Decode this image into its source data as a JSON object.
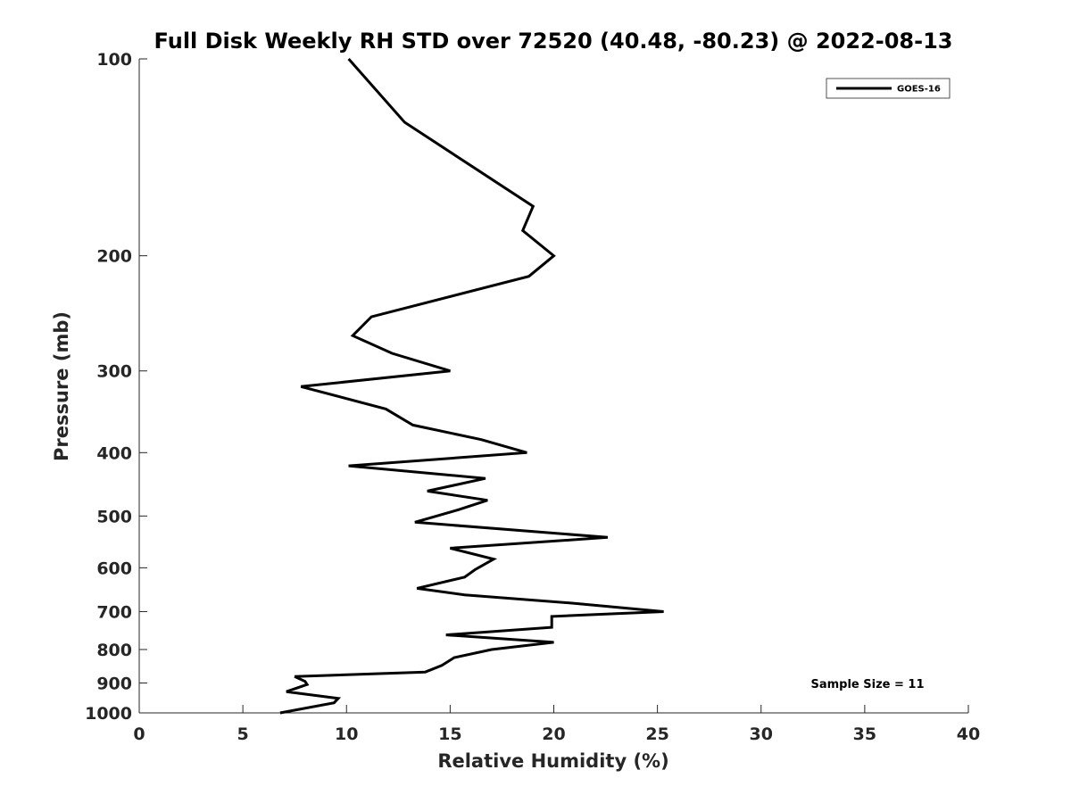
{
  "chart_data": {
    "type": "line",
    "title": "Full Disk Weekly RH STD over 72520 (40.48, -80.23) @ 2022-08-13",
    "xlabel": "Relative Humidity (%)",
    "ylabel": "Pressure (mb)",
    "xlim": [
      0,
      40
    ],
    "ylim": [
      100,
      1000
    ],
    "y_scale": "log",
    "y_reversed": true,
    "x_ticks": [
      "0",
      "5",
      "10",
      "15",
      "20",
      "25",
      "30",
      "35",
      "40"
    ],
    "y_ticks": [
      "100",
      "200",
      "300",
      "400",
      "500",
      "600",
      "700",
      "800",
      "900",
      "1000"
    ],
    "grid": false,
    "legend_position": "top-right",
    "series": [
      {
        "name": "GOES-16",
        "color": "#000000",
        "points": [
          [
            10.1,
            100
          ],
          [
            12.8,
            125
          ],
          [
            19.0,
            168
          ],
          [
            18.5,
            183
          ],
          [
            20.0,
            200
          ],
          [
            18.8,
            215
          ],
          [
            11.2,
            248
          ],
          [
            10.3,
            265
          ],
          [
            12.2,
            282
          ],
          [
            15.0,
            300
          ],
          [
            7.8,
            317
          ],
          [
            11.9,
            343
          ],
          [
            13.2,
            363
          ],
          [
            16.5,
            382
          ],
          [
            18.7,
            400
          ],
          [
            10.1,
            419
          ],
          [
            16.7,
            438
          ],
          [
            13.9,
            458
          ],
          [
            16.8,
            473
          ],
          [
            15.4,
            489
          ],
          [
            13.3,
            511
          ],
          [
            22.6,
            539
          ],
          [
            15.0,
            560
          ],
          [
            17.1,
            582
          ],
          [
            16.2,
            604
          ],
          [
            15.7,
            620
          ],
          [
            13.4,
            645
          ],
          [
            15.7,
            660
          ],
          [
            21.0,
            680
          ],
          [
            25.3,
            700
          ],
          [
            19.9,
            712
          ],
          [
            19.9,
            740
          ],
          [
            14.8,
            760
          ],
          [
            20.0,
            780
          ],
          [
            17.0,
            800
          ],
          [
            15.2,
            823
          ],
          [
            14.6,
            846
          ],
          [
            13.8,
            866
          ],
          [
            7.5,
            880
          ],
          [
            8.0,
            895
          ],
          [
            8.1,
            905
          ],
          [
            7.1,
            928
          ],
          [
            9.6,
            950
          ],
          [
            9.4,
            965
          ],
          [
            6.8,
            1000
          ]
        ]
      }
    ],
    "annotations": [
      {
        "text": "Sample Size = 11"
      }
    ]
  }
}
